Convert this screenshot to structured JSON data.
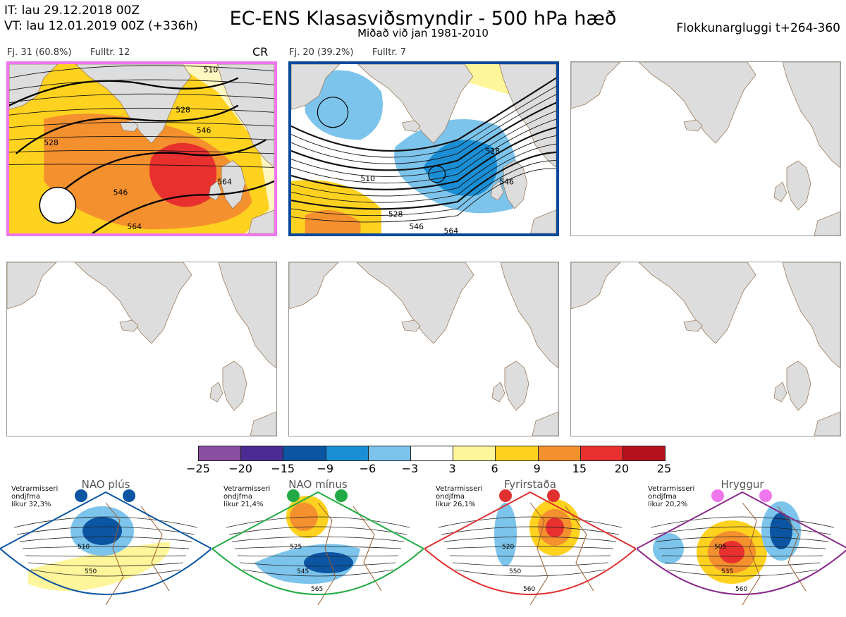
{
  "header": {
    "it_line": "IT: lau 29.12.2018 00Z",
    "vt_line": "VT: lau 12.01.2019 00Z  (+336h)",
    "title": "EC-ENS Klasasviðsmyndir - 500 hPa hæð",
    "subtitle": "Miðað við jan 1981-2010",
    "window": "Flokkunargluggi t+264-360"
  },
  "panels": [
    {
      "count_label": "Fj. 31 (60.8%)",
      "rep_label": "Fulltr. 12",
      "regime": "CR",
      "frame_color": "#ee77ee",
      "contour_labels": [
        "510",
        "528",
        "528",
        "546",
        "546",
        "564",
        "564"
      ]
    },
    {
      "count_label": "Fj. 20 (39.2%)",
      "rep_label": "Fulltr. 7",
      "regime": "",
      "frame_color": "#0a4a9a",
      "contour_labels": [
        "510",
        "528",
        "546",
        "528",
        "546",
        "564"
      ]
    }
  ],
  "colorbar": {
    "ticks": [
      "−25",
      "−20",
      "−15",
      "−9",
      "−6",
      "−3",
      "3",
      "6",
      "9",
      "15",
      "20",
      "25"
    ],
    "colors": [
      "#8a4fa0",
      "#4a2c92",
      "#0b55a3",
      "#1a8fd6",
      "#7cc4ec",
      "#ffffff",
      "#fff59a",
      "#ffd21f",
      "#f5902e",
      "#e8302e",
      "#b4101c"
    ]
  },
  "regimes": [
    {
      "name": "NAO plús",
      "note": [
        "Vetrarmisseri",
        "ondjfma",
        "líkur 32,3%"
      ],
      "color": "#0b55a3",
      "dot_color": "#0b55a3",
      "labels": [
        "510",
        "550"
      ]
    },
    {
      "name": "NAO mínus",
      "note": [
        "Vetrarmisseri",
        "ondjfma",
        "líkur 21,4%"
      ],
      "color": "#22aa44",
      "dot_color": "#22aa44",
      "labels": [
        "525",
        "545",
        "565"
      ]
    },
    {
      "name": "Fyrirstaða",
      "note": [
        "Vetrarmisseri",
        "ondjfma",
        "líkur 26,1%"
      ],
      "color": "#e03030",
      "dot_color": "#e03030",
      "labels": [
        "520",
        "550",
        "560"
      ]
    },
    {
      "name": "Hryggur",
      "note": [
        "Vetrarmisseri",
        "ondjfma",
        "líkur 20,2%"
      ],
      "color": "#8a2a8a",
      "dot_color": "#ee77ee",
      "labels": [
        "505",
        "535",
        "560"
      ]
    }
  ]
}
